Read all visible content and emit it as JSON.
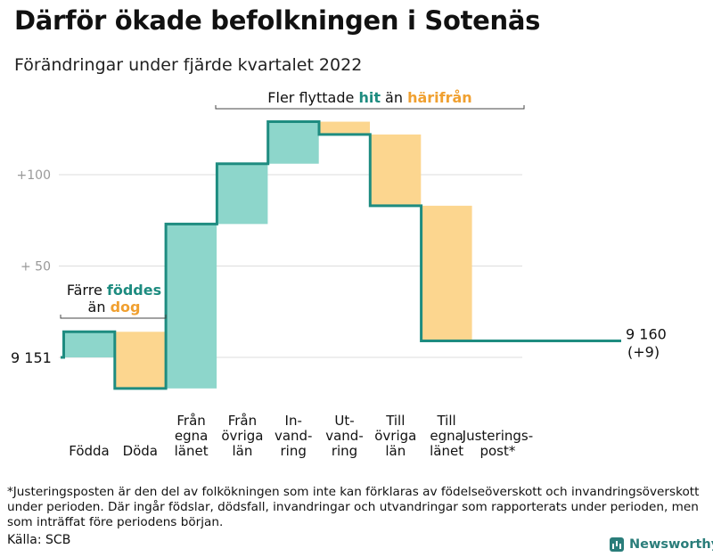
{
  "title": "Därför ökade befolkningen i Sotenäs",
  "subtitle": "Förändringar under fjärde kvartalet 2022",
  "footnote": "*Justeringsposten är den del av folkökningen som inte kan förklaras av födelseöverskott och invandringsöverskott under perioden. Där ingår födslar, dödsfall, invandringar och utvandringar som rapporterats under perioden, men som inträffat före periodens början.",
  "source": "Källa: SCB",
  "brand": "Newsworthy",
  "colors": {
    "increase": "#8dd6cb",
    "decrease": "#fcd68f",
    "adjustment": "#cccccc",
    "line": "#1e8c80",
    "grid": "#dddddd",
    "tick": "#999999",
    "highlight_teal": "#1e8c80",
    "highlight_orange": "#f0a030"
  },
  "chart_data": {
    "type": "waterfall",
    "start_value": 9151,
    "start_label": "9 151",
    "end_value": 9160,
    "end_label": "9 160",
    "end_change_label": "(+9)",
    "y_ticks": [
      {
        "value": 50,
        "label": "+ 50"
      },
      {
        "value": 100,
        "label": "+100"
      }
    ],
    "steps": [
      {
        "key": "fodda",
        "label_lines": [
          "Födda"
        ],
        "value": 14,
        "kind": "increase"
      },
      {
        "key": "doda",
        "label_lines": [
          "Döda"
        ],
        "value": -31,
        "kind": "decrease"
      },
      {
        "key": "fran_egna",
        "label_lines": [
          "Från",
          "egna",
          "länet"
        ],
        "value": 90,
        "kind": "increase"
      },
      {
        "key": "fran_ovriga",
        "label_lines": [
          "Från",
          "övriga",
          "län"
        ],
        "value": 33,
        "kind": "increase"
      },
      {
        "key": "invandring",
        "label_lines": [
          "In-",
          "vand-",
          "ring"
        ],
        "value": 23,
        "kind": "increase"
      },
      {
        "key": "utvandring",
        "label_lines": [
          "Ut-",
          "vand-",
          "ring"
        ],
        "value": -7,
        "kind": "decrease"
      },
      {
        "key": "till_ovriga",
        "label_lines": [
          "Till",
          "övriga",
          "län"
        ],
        "value": -39,
        "kind": "decrease"
      },
      {
        "key": "till_egna",
        "label_lines": [
          "Till",
          "egna",
          "länet"
        ],
        "value": -74,
        "kind": "decrease"
      },
      {
        "key": "justering",
        "label_lines": [
          "Justerings-",
          "post*"
        ],
        "value": 0,
        "kind": "adjustment"
      }
    ],
    "annotations": [
      {
        "key": "births",
        "lines": [
          [
            {
              "text": "Färre ",
              "tone": "plain"
            },
            {
              "text": "föddes",
              "tone": "teal"
            }
          ],
          [
            {
              "text": "än ",
              "tone": "plain"
            },
            {
              "text": "dog",
              "tone": "orange"
            }
          ]
        ]
      },
      {
        "key": "migration",
        "lines": [
          [
            {
              "text": "Fler flyttade ",
              "tone": "plain"
            },
            {
              "text": "hit",
              "tone": "teal"
            },
            {
              "text": " än ",
              "tone": "plain"
            },
            {
              "text": "härifrån",
              "tone": "orange"
            }
          ]
        ]
      }
    ]
  }
}
